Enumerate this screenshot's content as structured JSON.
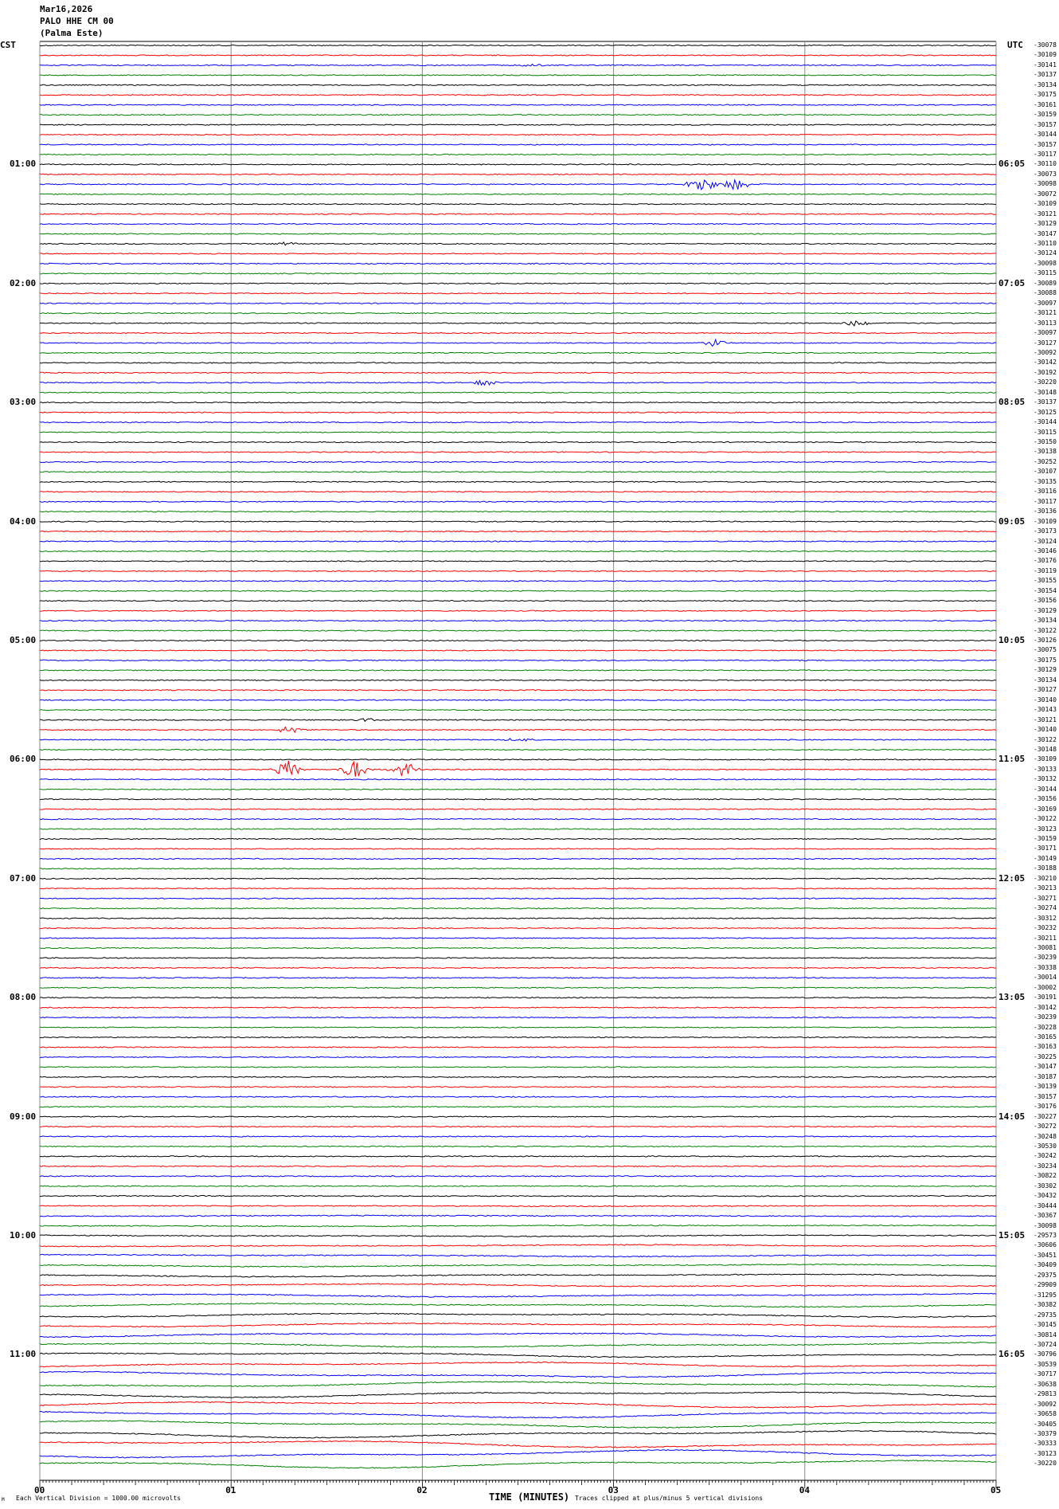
{
  "header": {
    "date": "Mar16,2026",
    "station": "PALO HHE CM 00",
    "site": "(Palma Este)",
    "left_tz": "CST",
    "right_tz": "UTC"
  },
  "footer": {
    "scale_note": "Each Vertical Division = 1000.00 microvolts",
    "xlabel": "TIME (MINUTES)",
    "clip_note": "Traces clipped at plus/minus 5 vertical divisions",
    "mark": "M"
  },
  "chart_data": {
    "type": "line",
    "subtype": "helicorder",
    "xlabel": "TIME (MINUTES)",
    "xlim": [
      0,
      5
    ],
    "x_ticks": [
      "00",
      "01",
      "02",
      "03",
      "04",
      "05"
    ],
    "rows_per_hour": 12,
    "trace_colors": [
      "#000000",
      "#ff0000",
      "#0000ff",
      "#008000"
    ],
    "grid": "vertical lines at each minute",
    "left_hour_labels": [
      {
        "row": 12,
        "label": "01:00"
      },
      {
        "row": 24,
        "label": "02:00"
      },
      {
        "row": 36,
        "label": "03:00"
      },
      {
        "row": 48,
        "label": "04:00"
      },
      {
        "row": 60,
        "label": "05:00"
      },
      {
        "row": 72,
        "label": "06:00"
      },
      {
        "row": 84,
        "label": "07:00"
      },
      {
        "row": 96,
        "label": "08:00"
      },
      {
        "row": 108,
        "label": "09:00"
      },
      {
        "row": 120,
        "label": "10:00"
      },
      {
        "row": 132,
        "label": "11:00"
      }
    ],
    "right_hour_labels": [
      {
        "row": 12,
        "label": "06:05"
      },
      {
        "row": 24,
        "label": "07:05"
      },
      {
        "row": 36,
        "label": "08:05"
      },
      {
        "row": 48,
        "label": "09:05"
      },
      {
        "row": 60,
        "label": "10:05"
      },
      {
        "row": 72,
        "label": "11:05"
      },
      {
        "row": 84,
        "label": "12:05"
      },
      {
        "row": 96,
        "label": "13:05"
      },
      {
        "row": 108,
        "label": "14:05"
      },
      {
        "row": 120,
        "label": "15:05"
      },
      {
        "row": 132,
        "label": "16:05"
      }
    ],
    "row_offsets": [
      "-30078",
      "-30109",
      "-30141",
      "-30137",
      "-30134",
      "-30175",
      "-30161",
      "-30159",
      "-30157",
      "-30144",
      "-30157",
      "-30117",
      "-30110",
      "-30073",
      "-30098",
      "-30072",
      "-30109",
      "-30121",
      "-30129",
      "-30147",
      "-30110",
      "-30124",
      "-30098",
      "-30115",
      "-30089",
      "-30088",
      "-30097",
      "-30121",
      "-30113",
      "-30097",
      "-30127",
      "-30092",
      "-30142",
      "-30192",
      "-30220",
      "-30148",
      "-30137",
      "-30125",
      "-30144",
      "-30115",
      "-30150",
      "-30138",
      "-30252",
      "-30107",
      "-30135",
      "-30116",
      "-30117",
      "-30136",
      "-30109",
      "-30173",
      "-30124",
      "-30146",
      "-30176",
      "-30119",
      "-30155",
      "-30154",
      "-30156",
      "-30129",
      "-30134",
      "-30122",
      "-30126",
      "-30075",
      "-30175",
      "-30129",
      "-30134",
      "-30127",
      "-30140",
      "-30143",
      "-30121",
      "-30140",
      "-30122",
      "-30148",
      "-30109",
      "-30133",
      "-30132",
      "-30144",
      "-30156",
      "-30169",
      "-30122",
      "-30123",
      "-30159",
      "-30171",
      "-30149",
      "-30188",
      "-30210",
      "-30213",
      "-30271",
      "-30274",
      "-30312",
      "-30232",
      "-30211",
      "-30081",
      "-30239",
      "-30338",
      "-30014",
      "-30002",
      "-30191",
      "-30142",
      "-30239",
      "-30228",
      "-30165",
      "-30163",
      "-30225",
      "-30147",
      "-30187",
      "-30139",
      "-30157",
      "-30176",
      "-30227",
      "-30272",
      "-30248",
      "-30530",
      "-30242",
      "-30234",
      "-30822",
      "-30302",
      "-30432",
      "-30444",
      "-30367",
      "-30098",
      "-29573",
      "-30606",
      "-30451",
      "-30409",
      "-29375",
      "-29909",
      "-31295",
      "-30382",
      "-29735",
      "-30145",
      "-30814",
      "-30724",
      "-30796",
      "-30539",
      "-30717",
      "-30638",
      "-29813",
      "-30092",
      "-30658",
      "-30405",
      "-30379",
      "-30333",
      "-30123",
      "-30220"
    ],
    "events": [
      {
        "row": 2,
        "minute": 2.58,
        "amplitude": 0.3
      },
      {
        "row": 14,
        "minute": 3.46,
        "amplitude": 1.6
      },
      {
        "row": 14,
        "minute": 3.64,
        "amplitude": 0.9
      },
      {
        "row": 20,
        "minute": 1.3,
        "amplitude": 0.3
      },
      {
        "row": 28,
        "minute": 4.27,
        "amplitude": 0.6
      },
      {
        "row": 30,
        "minute": 3.54,
        "amplitude": 0.6
      },
      {
        "row": 34,
        "minute": 2.33,
        "amplitude": 0.5
      },
      {
        "row": 68,
        "minute": 1.7,
        "amplitude": 0.3
      },
      {
        "row": 69,
        "minute": 1.3,
        "amplitude": 0.6
      },
      {
        "row": 70,
        "minute": 2.5,
        "amplitude": 0.3
      },
      {
        "row": 73,
        "minute": 1.3,
        "amplitude": 1.5
      },
      {
        "row": 73,
        "minute": 1.65,
        "amplitude": 1.5
      },
      {
        "row": 73,
        "minute": 1.9,
        "amplitude": 1.3
      }
    ]
  }
}
